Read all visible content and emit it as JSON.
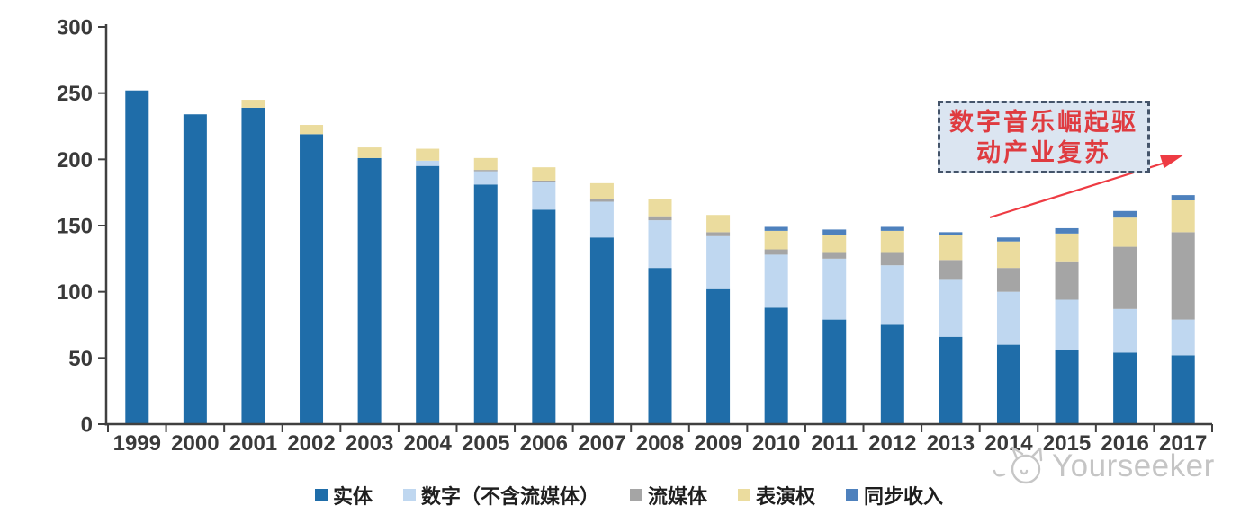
{
  "chart_data": {
    "type": "bar",
    "stacked": true,
    "categories": [
      "1999",
      "2000",
      "2001",
      "2002",
      "2003",
      "2004",
      "2005",
      "2006",
      "2007",
      "2008",
      "2009",
      "2010",
      "2011",
      "2012",
      "2013",
      "2014",
      "2015",
      "2016",
      "2017"
    ],
    "series": [
      {
        "name": "实体",
        "color": "#1F6DA9",
        "values": [
          252,
          234,
          239,
          219,
          201,
          195,
          181,
          162,
          141,
          118,
          102,
          88,
          79,
          75,
          66,
          60,
          56,
          54,
          52
        ]
      },
      {
        "name": "数字（不含流媒体）",
        "color": "#BFD7F0",
        "values": [
          0,
          0,
          0,
          0,
          0,
          4,
          10,
          21,
          27,
          36,
          40,
          40,
          46,
          45,
          43,
          40,
          38,
          33,
          27
        ]
      },
      {
        "name": "流媒体",
        "color": "#A5A5A5",
        "values": [
          0,
          0,
          0,
          0,
          0,
          0,
          1,
          1,
          2,
          3,
          3,
          4,
          5,
          10,
          15,
          18,
          29,
          47,
          66
        ]
      },
      {
        "name": "表演权",
        "color": "#EBDC9E",
        "values": [
          0,
          0,
          6,
          7,
          8,
          9,
          9,
          10,
          12,
          13,
          13,
          14,
          13,
          16,
          19,
          20,
          21,
          22,
          24
        ]
      },
      {
        "name": "同步收入",
        "color": "#4E81BD",
        "values": [
          0,
          0,
          0,
          0,
          0,
          0,
          0,
          0,
          0,
          0,
          0,
          3,
          4,
          3,
          2,
          3,
          4,
          5,
          4
        ]
      }
    ],
    "ylim": [
      0,
      300
    ],
    "yticks": [
      0,
      50,
      100,
      150,
      200,
      250,
      300
    ],
    "grid": false,
    "legend_position": "bottom"
  },
  "annotation": {
    "line1": "数字音乐崛起驱",
    "line2": "动产业复苏",
    "text_color": "#DF3B40",
    "arrow_color": "#EE3B43",
    "box_fill": "#DBE5F1",
    "box_border": "#44546A"
  },
  "watermark": {
    "text": "Yourseeker"
  }
}
